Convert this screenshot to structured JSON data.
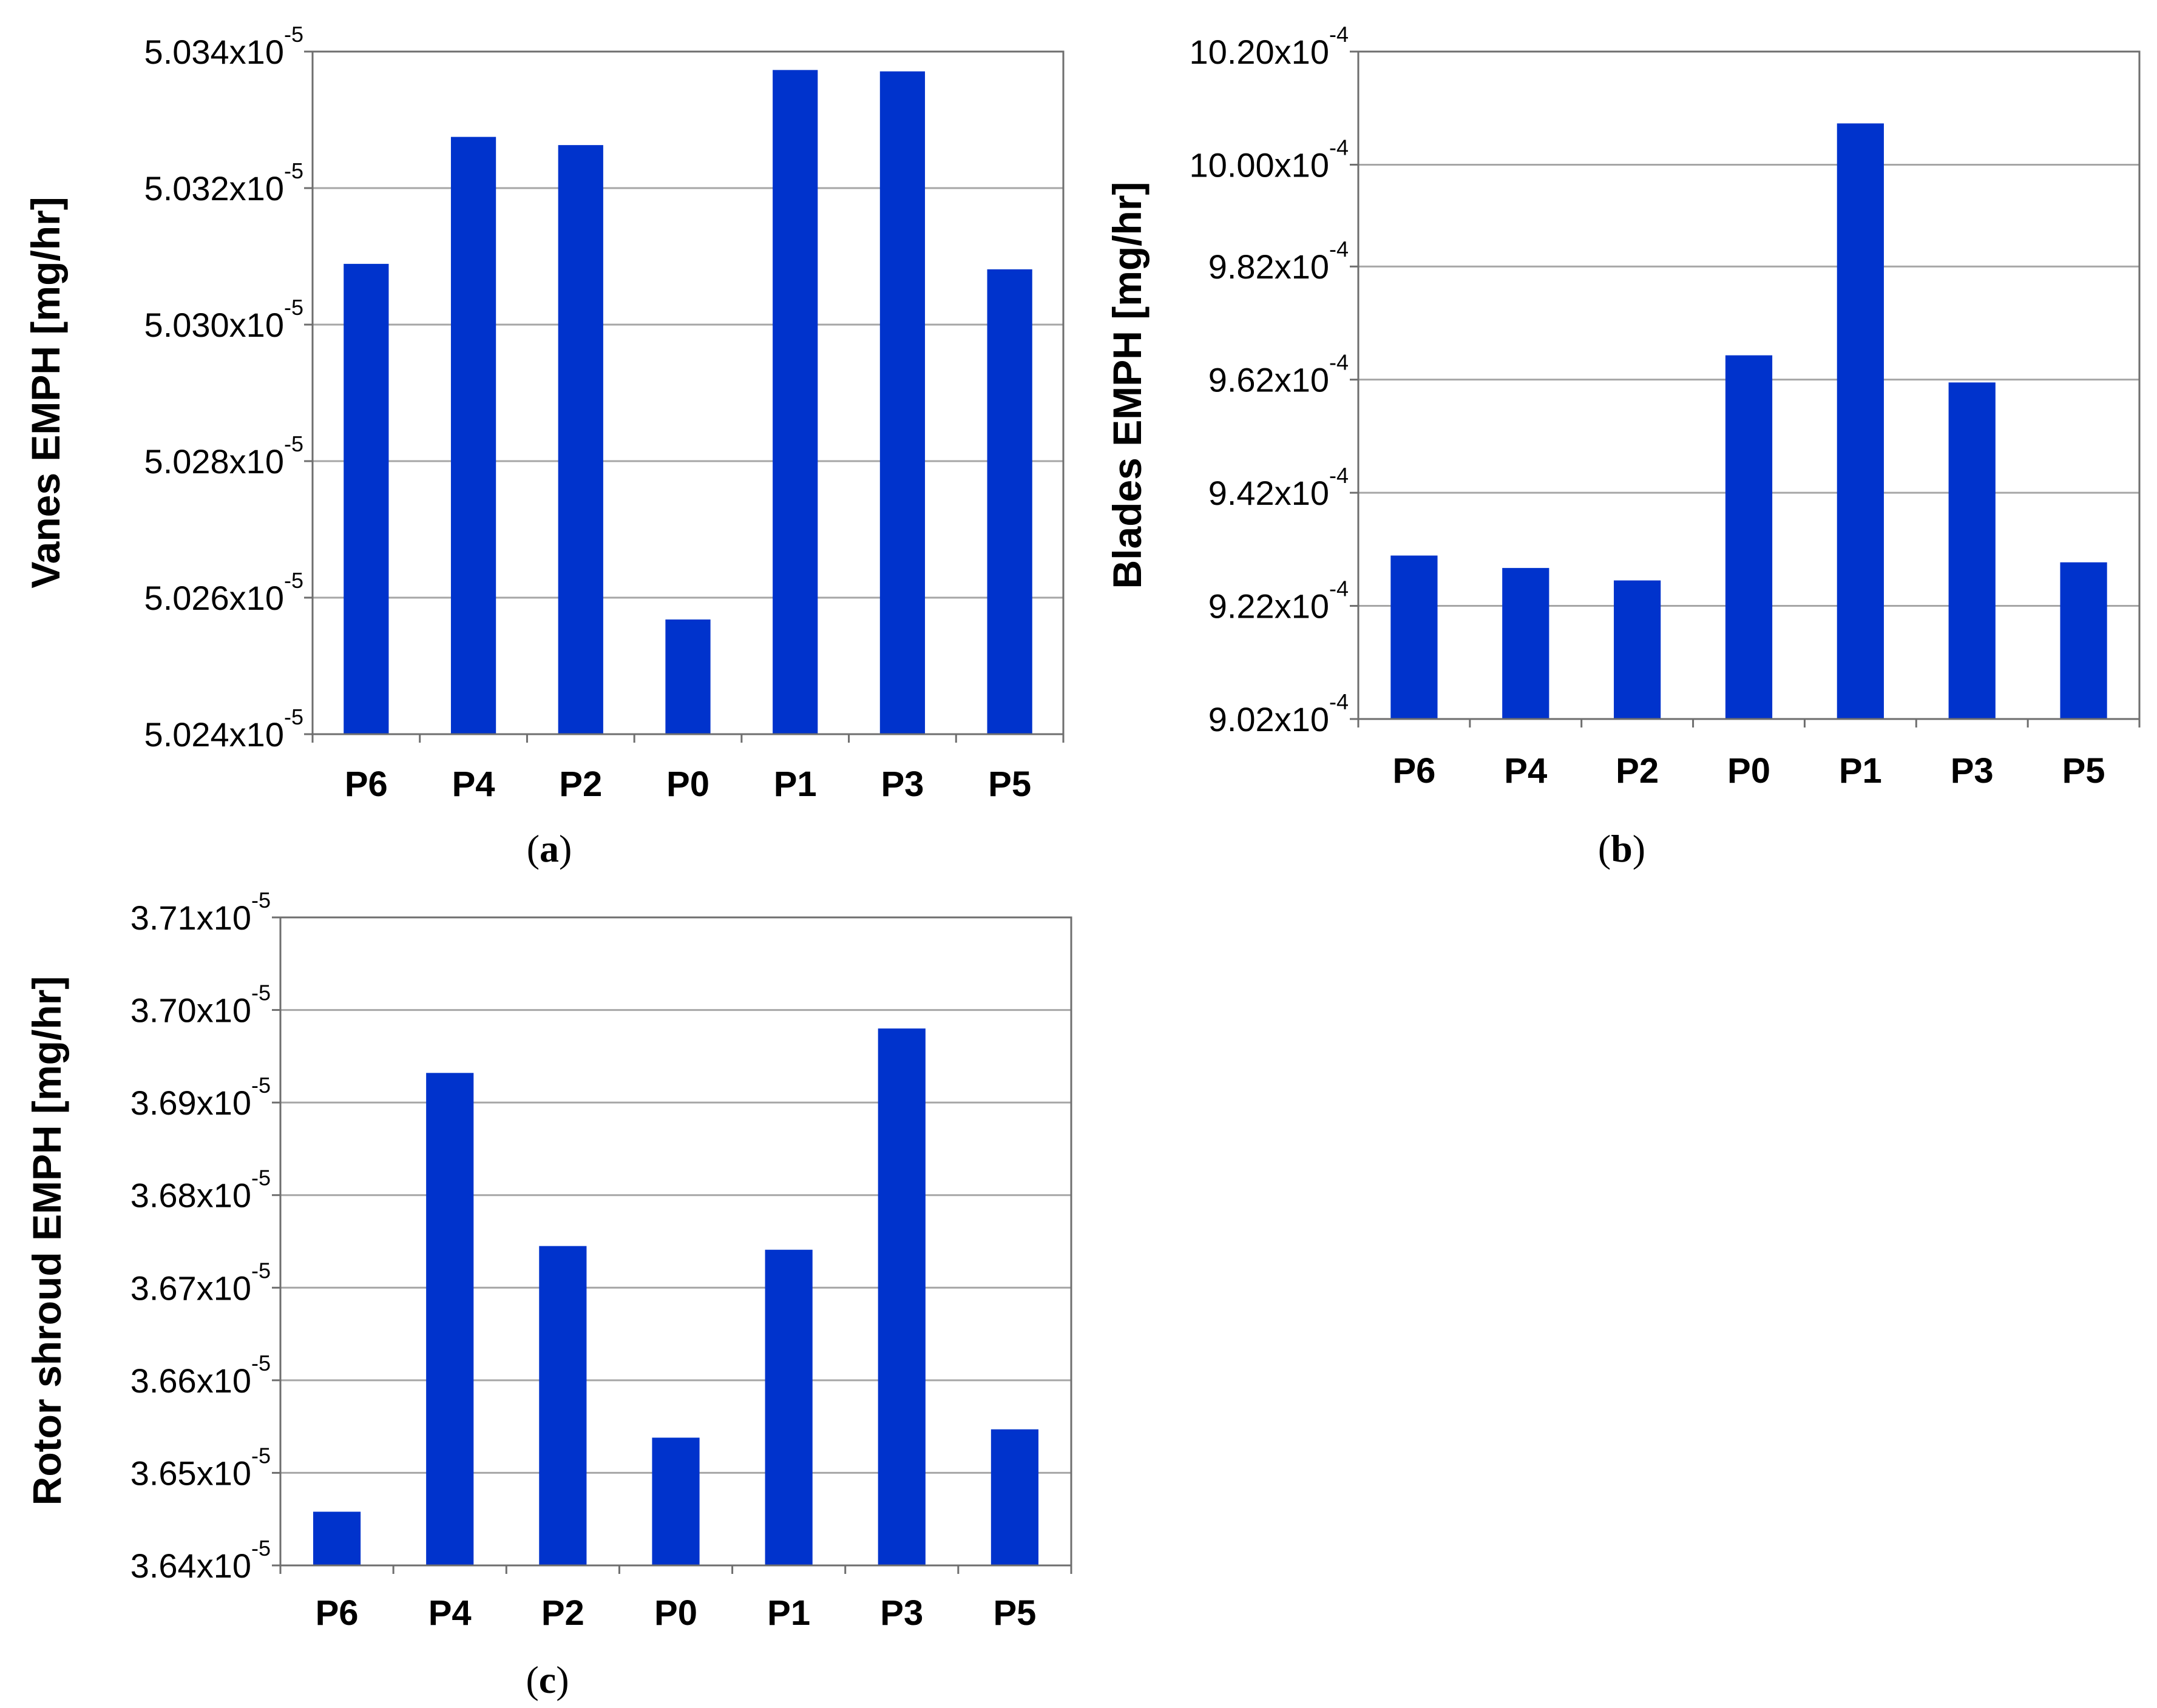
{
  "colors": {
    "bar": "#0033cc",
    "grid": "#a6a6a6",
    "frame": "#6e6e6e"
  },
  "chart_data": [
    {
      "id": "a",
      "panel_label": "a",
      "type": "bar",
      "ylabel": "Vanes EMPH [mg/hr]",
      "categories": [
        "P6",
        "P4",
        "P2",
        "P0",
        "P1",
        "P3",
        "P5"
      ],
      "values": [
        5.03089e-05,
        5.03275e-05,
        5.03263e-05,
        5.02568e-05,
        5.03373e-05,
        5.03371e-05,
        5.03081e-05
      ],
      "ylim": [
        5.024e-05,
        5.034e-05
      ],
      "yticks": [
        {
          "value": 5.024e-05,
          "mantissa": "5.024",
          "times": "x10",
          "exp": "-5"
        },
        {
          "value": 5.026e-05,
          "mantissa": "5.026",
          "times": "x10",
          "exp": "-5"
        },
        {
          "value": 5.028e-05,
          "mantissa": "5.028",
          "times": "x10",
          "exp": "-5"
        },
        {
          "value": 5.03e-05,
          "mantissa": "5.030",
          "times": "x10",
          "exp": "-5"
        },
        {
          "value": 5.032e-05,
          "mantissa": "5.032",
          "times": "x10",
          "exp": "-5"
        },
        {
          "value": 5.034e-05,
          "mantissa": "5.034",
          "times": "x10",
          "exp": "-5"
        }
      ],
      "grid": true
    },
    {
      "id": "b",
      "panel_label": "b",
      "type": "bar",
      "ylabel": "Blades EMPH [mg/hr]",
      "categories": [
        "P6",
        "P4",
        "P2",
        "P0",
        "P1",
        "P3",
        "P5"
      ],
      "values": [
        0.0009309,
        0.0009287,
        0.0009265,
        0.0009663,
        0.0010073,
        0.0009615,
        0.0009297
      ],
      "ylim": [
        0.000902,
        0.00102
      ],
      "yticks": [
        {
          "value": 0.000902,
          "mantissa": "9.02",
          "times": "x10",
          "exp": "-4"
        },
        {
          "value": 0.000922,
          "mantissa": "9.22",
          "times": "x10",
          "exp": "-4"
        },
        {
          "value": 0.000942,
          "mantissa": "9.42",
          "times": "x10",
          "exp": "-4"
        },
        {
          "value": 0.000962,
          "mantissa": "9.62",
          "times": "x10",
          "exp": "-4"
        },
        {
          "value": 0.000982,
          "mantissa": "9.82",
          "times": "x10",
          "exp": "-4"
        },
        {
          "value": 0.001,
          "mantissa": "10.00",
          "times": "x10",
          "exp": "-4"
        },
        {
          "value": 0.00102,
          "mantissa": "10.20",
          "times": "x10",
          "exp": "-4"
        }
      ],
      "grid": true
    },
    {
      "id": "c",
      "panel_label": "c",
      "type": "bar",
      "ylabel": "Rotor shroud EMPH [mg/hr]",
      "categories": [
        "P6",
        "P4",
        "P2",
        "P0",
        "P1",
        "P3",
        "P5"
      ],
      "values": [
        3.6458e-05,
        3.6932e-05,
        3.6745e-05,
        3.6538e-05,
        3.6741e-05,
        3.698e-05,
        3.6547e-05
      ],
      "ylim": [
        3.64e-05,
        3.71e-05
      ],
      "yticks": [
        {
          "value": 3.64e-05,
          "mantissa": "3.64",
          "times": "x10",
          "exp": "-5"
        },
        {
          "value": 3.65e-05,
          "mantissa": "3.65",
          "times": "x10",
          "exp": "-5"
        },
        {
          "value": 3.66e-05,
          "mantissa": "3.66",
          "times": "x10",
          "exp": "-5"
        },
        {
          "value": 3.67e-05,
          "mantissa": "3.67",
          "times": "x10",
          "exp": "-5"
        },
        {
          "value": 3.68e-05,
          "mantissa": "3.68",
          "times": "x10",
          "exp": "-5"
        },
        {
          "value": 3.69e-05,
          "mantissa": "3.69",
          "times": "x10",
          "exp": "-5"
        },
        {
          "value": 3.7e-05,
          "mantissa": "3.70",
          "times": "x10",
          "exp": "-5"
        },
        {
          "value": 3.71e-05,
          "mantissa": "3.71",
          "times": "x10",
          "exp": "-5"
        }
      ],
      "grid": true
    }
  ]
}
